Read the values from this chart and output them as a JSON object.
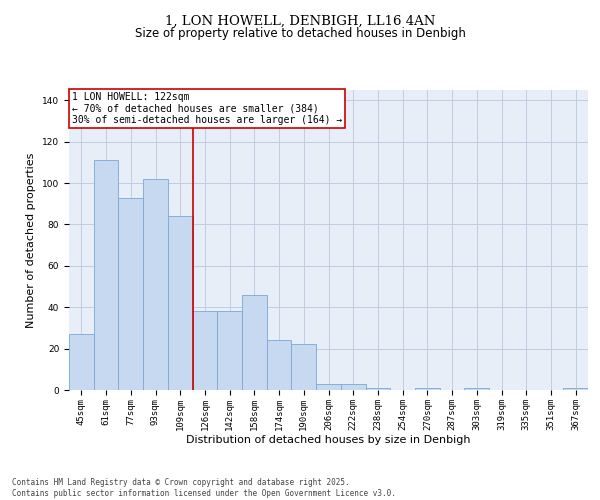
{
  "title": "1, LON HOWELL, DENBIGH, LL16 4AN",
  "subtitle": "Size of property relative to detached houses in Denbigh",
  "xlabel": "Distribution of detached houses by size in Denbigh",
  "ylabel": "Number of detached properties",
  "footnote": "Contains HM Land Registry data © Crown copyright and database right 2025.\nContains public sector information licensed under the Open Government Licence v3.0.",
  "categories": [
    "45sqm",
    "61sqm",
    "77sqm",
    "93sqm",
    "109sqm",
    "126sqm",
    "142sqm",
    "158sqm",
    "174sqm",
    "190sqm",
    "206sqm",
    "222sqm",
    "238sqm",
    "254sqm",
    "270sqm",
    "287sqm",
    "303sqm",
    "319sqm",
    "335sqm",
    "351sqm",
    "367sqm"
  ],
  "values": [
    27,
    111,
    93,
    102,
    84,
    38,
    38,
    46,
    24,
    22,
    3,
    3,
    1,
    0,
    1,
    0,
    1,
    0,
    0,
    0,
    1
  ],
  "bar_color": "#c6d9f0",
  "bar_edge_color": "#7ba7d4",
  "vline_color": "#cc0000",
  "annotation_title": "1 LON HOWELL: 122sqm",
  "annotation_line1": "← 70% of detached houses are smaller (384)",
  "annotation_line2": "30% of semi-detached houses are larger (164) →",
  "annotation_box_color": "#ffffff",
  "annotation_box_edge": "#cc0000",
  "ylim": [
    0,
    145
  ],
  "yticks": [
    0,
    20,
    40,
    60,
    80,
    100,
    120,
    140
  ],
  "grid_color": "#c0cce0",
  "bg_color": "#e8eef8",
  "title_fontsize": 9.5,
  "subtitle_fontsize": 8.5,
  "label_fontsize": 8,
  "tick_fontsize": 6.5,
  "annotation_fontsize": 7,
  "footnote_fontsize": 5.5
}
